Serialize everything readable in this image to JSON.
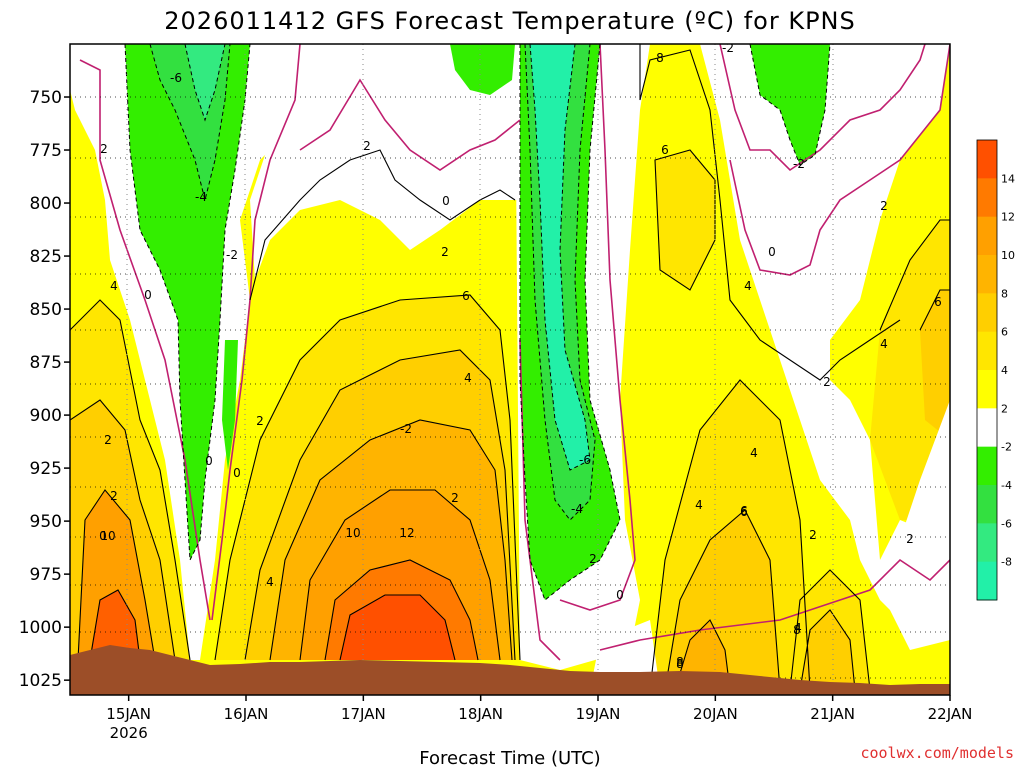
{
  "chart_data": {
    "type": "contour",
    "title": "2026011412 GFS Forecast Temperature (ºC) for KPNS",
    "xlabel": "Forecast Time (UTC)",
    "ylabel": "",
    "credit": "coolwx.com/models",
    "credit_color": "#e03030",
    "x_ticks": [
      {
        "label": "15JAN",
        "sub": "2026",
        "t": 0.5
      },
      {
        "label": "16JAN",
        "t": 1.5
      },
      {
        "label": "17JAN",
        "t": 2.5
      },
      {
        "label": "18JAN",
        "t": 3.5
      },
      {
        "label": "19JAN",
        "t": 4.5
      },
      {
        "label": "20JAN",
        "t": 5.5
      },
      {
        "label": "21JAN",
        "t": 6.5
      },
      {
        "label": "22JAN",
        "t": 7.5
      }
    ],
    "x_range": [
      0,
      7.5
    ],
    "y_ticks": [
      750,
      775,
      800,
      825,
      850,
      875,
      900,
      925,
      950,
      975,
      1000,
      1025
    ],
    "y_range_hpa": [
      725,
      1032
    ],
    "colorbar": {
      "levels": [
        {
          "label": "14",
          "color": "#ff5000"
        },
        {
          "label": "12",
          "color": "#ff7a00"
        },
        {
          "label": "10",
          "color": "#ffa000"
        },
        {
          "label": "8",
          "color": "#ffb400"
        },
        {
          "label": "6",
          "color": "#ffcf00"
        },
        {
          "label": "4",
          "color": "#ffe600"
        },
        {
          "label": "2",
          "color": "#ffff00"
        },
        {
          "label": "-2",
          "color": "#ffffff"
        },
        {
          "label": "-4",
          "color": "#33ee00"
        },
        {
          "label": "-6",
          "color": "#33e040"
        },
        {
          "label": "-8",
          "color": "#33ea80"
        },
        {
          "label": "",
          "color": "#22f0a8"
        }
      ]
    },
    "contour_labels": [
      "-6",
      "2",
      "-4",
      "-2",
      "0",
      "2",
      "0",
      "2",
      "2",
      "4",
      "0",
      "4",
      "6",
      "4",
      "2",
      "2",
      "0",
      "-2",
      "0",
      "2",
      "8",
      "-2",
      "6",
      "4",
      "-6",
      "0",
      "4",
      "10",
      "12",
      "8",
      "8",
      "-4",
      "6",
      "6",
      "-2",
      "2",
      "4",
      "2",
      "10",
      "0",
      "8",
      "2",
      "4",
      "2",
      "4",
      "6",
      "2"
    ],
    "surface_color": "#9c4e28",
    "grid": true
  }
}
